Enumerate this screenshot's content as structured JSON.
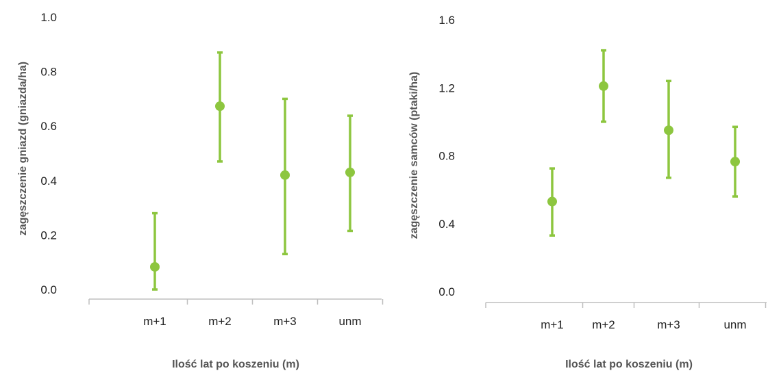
{
  "colors": {
    "marker": "#8dc63f",
    "axis": "#bfbfbf",
    "label": "#555555",
    "tick": "#222222"
  },
  "chart_data": [
    {
      "type": "scatter",
      "title": "",
      "xlabel": "Ilość lat po koszeniu (m)",
      "ylabel": "zagęszczenie gniazd (gniazda/ha)",
      "categories": [
        "m+1",
        "m+2",
        "m+3",
        "unm"
      ],
      "values": [
        0.083,
        0.673,
        0.42,
        0.43
      ],
      "err_low": [
        0.0,
        0.47,
        0.13,
        0.215
      ],
      "err_high": [
        0.28,
        0.87,
        0.7,
        0.638
      ],
      "ylim": [
        0,
        1.0
      ],
      "yticks": [
        "0.0",
        "0.2",
        "0.4",
        "0.6",
        "0.8",
        "1.0"
      ],
      "grid": false
    },
    {
      "type": "scatter",
      "title": "",
      "xlabel": "Ilość lat po koszeniu (m)",
      "ylabel": "zagęszczenie samców (ptaki/ha)",
      "categories": [
        "m+1",
        "m+2",
        "m+3",
        "unm"
      ],
      "values": [
        0.53,
        1.21,
        0.95,
        0.765
      ],
      "err_low": [
        0.33,
        1.0,
        0.67,
        0.56
      ],
      "err_high": [
        0.725,
        1.42,
        1.24,
        0.97
      ],
      "ylim": [
        0,
        1.6
      ],
      "yticks": [
        "0.0",
        "0.4",
        "0.8",
        "1.2",
        "1.6"
      ],
      "grid": false
    }
  ]
}
